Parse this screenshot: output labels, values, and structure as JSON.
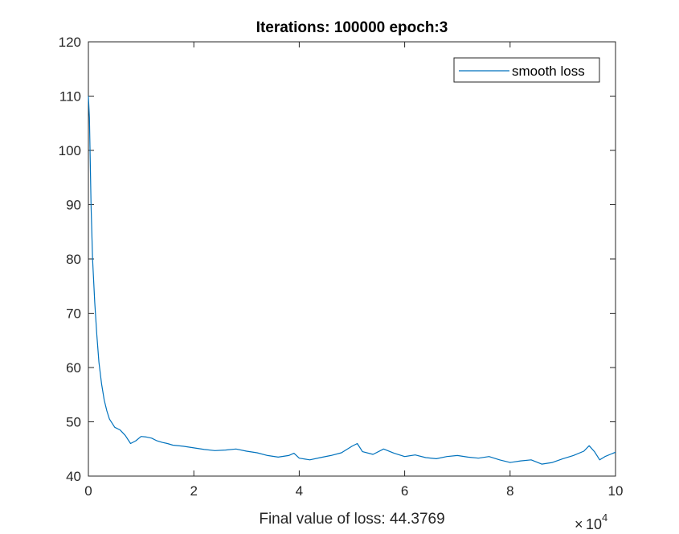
{
  "chart_data": {
    "type": "line",
    "title": "Iterations: 100000  epoch:3",
    "xlabel": "Final value of loss: 44.3769",
    "ylabel": "",
    "x_exponent_label": {
      "base": "10",
      "exponent": "4"
    },
    "xlim": [
      0,
      10
    ],
    "ylim": [
      40,
      120
    ],
    "x_ticks": [
      0,
      2,
      4,
      6,
      8,
      10
    ],
    "y_ticks": [
      40,
      50,
      60,
      70,
      80,
      90,
      100,
      110,
      120
    ],
    "grid": false,
    "legend": {
      "position": "top-right",
      "entries": [
        "smooth loss"
      ]
    },
    "series": [
      {
        "name": "smooth loss",
        "color": "#0072BD",
        "x": [
          0,
          0.02,
          0.05,
          0.08,
          0.12,
          0.16,
          0.2,
          0.25,
          0.3,
          0.35,
          0.4,
          0.5,
          0.6,
          0.7,
          0.8,
          0.9,
          1.0,
          1.1,
          1.2,
          1.3,
          1.4,
          1.5,
          1.6,
          1.8,
          2.0,
          2.2,
          2.4,
          2.6,
          2.8,
          3.0,
          3.2,
          3.4,
          3.6,
          3.8,
          3.9,
          4.0,
          4.2,
          4.4,
          4.6,
          4.8,
          5.0,
          5.1,
          5.2,
          5.4,
          5.6,
          5.8,
          6.0,
          6.2,
          6.4,
          6.6,
          6.8,
          7.0,
          7.2,
          7.4,
          7.6,
          7.8,
          8.0,
          8.2,
          8.4,
          8.6,
          8.8,
          9.0,
          9.2,
          9.4,
          9.5,
          9.6,
          9.7,
          9.8,
          9.9,
          10.0
        ],
        "y": [
          110,
          106,
          90,
          80,
          72,
          66,
          61,
          57,
          54,
          52,
          50.5,
          49,
          48.5,
          47.5,
          46,
          46.5,
          47.3,
          47.2,
          47.0,
          46.5,
          46.2,
          46.0,
          45.7,
          45.5,
          45.2,
          44.9,
          44.7,
          44.8,
          45.0,
          44.6,
          44.3,
          43.8,
          43.5,
          43.8,
          44.2,
          43.3,
          43.0,
          43.4,
          43.8,
          44.3,
          45.5,
          46.0,
          44.5,
          44.0,
          45.0,
          44.2,
          43.6,
          43.9,
          43.4,
          43.2,
          43.6,
          43.8,
          43.5,
          43.3,
          43.6,
          43.0,
          42.5,
          42.8,
          43.0,
          42.2,
          42.5,
          43.2,
          43.8,
          44.6,
          45.6,
          44.5,
          43.0,
          43.6,
          44.0,
          44.4
        ]
      }
    ]
  }
}
